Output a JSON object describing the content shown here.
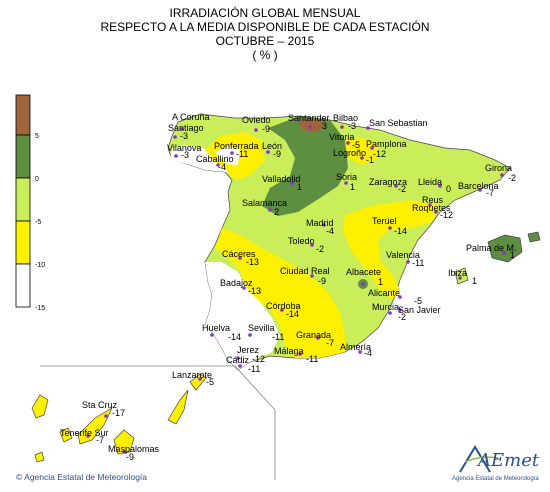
{
  "title": {
    "line1": "IRRADIACIÓN GLOBAL MENSUAL",
    "line2": "RESPECTO A LA MEDIA DISPONIBLE DE CADA ESTACIÓN",
    "line3": "OCTUBRE – 2015",
    "line4": "( % )"
  },
  "legend": {
    "ticks": [
      "5",
      "0",
      "-5",
      "-10",
      "-15"
    ],
    "colors": [
      "#a0643c",
      "#5e8e40",
      "#c9ee5a",
      "#fff000",
      "#ffffff"
    ]
  },
  "stations": [
    {
      "name": "A Coruña",
      "value": ""
    },
    {
      "name": "Santiago",
      "value": "-3"
    },
    {
      "name": "Oviedo",
      "value": "-9"
    },
    {
      "name": "Santander",
      "value": "3"
    },
    {
      "name": "Bilbao",
      "value": "-3"
    },
    {
      "name": "San Sebastian",
      "value": ""
    },
    {
      "name": "Vilanova",
      "value": "-3"
    },
    {
      "name": "Ponferrada",
      "value": "-11"
    },
    {
      "name": "León",
      "value": "-9"
    },
    {
      "name": "Vitoria",
      "value": "-5"
    },
    {
      "name": "Pamplona",
      "value": "-12"
    },
    {
      "name": "Logroño",
      "value": "-1"
    },
    {
      "name": "Girona",
      "value": "-2"
    },
    {
      "name": "Caballino",
      "value": "-4"
    },
    {
      "name": "Valladolid",
      "value": "1"
    },
    {
      "name": "Soria",
      "value": "1"
    },
    {
      "name": "Zaragoza",
      "value": "-2"
    },
    {
      "name": "Lleida",
      "value": "0"
    },
    {
      "name": "Barcelona",
      "value": "-7"
    },
    {
      "name": "Salamanca",
      "value": "2"
    },
    {
      "name": "Reus",
      "value": ""
    },
    {
      "name": "Roquetes",
      "value": "-12"
    },
    {
      "name": "Madrid",
      "value": "-4"
    },
    {
      "name": "Teruel",
      "value": "-14"
    },
    {
      "name": "Toledo",
      "value": "-2"
    },
    {
      "name": "Palma de M.",
      "value": "1"
    },
    {
      "name": "Cáceres",
      "value": "-13"
    },
    {
      "name": "Valencia",
      "value": "-11"
    },
    {
      "name": "Ciudad Real",
      "value": "-9"
    },
    {
      "name": "Albacete",
      "value": "1"
    },
    {
      "name": "Ibiza",
      "value": "1"
    },
    {
      "name": "Badajoz",
      "value": "-13"
    },
    {
      "name": "Alicante",
      "value": "-5"
    },
    {
      "name": "Córdoba",
      "value": "-14"
    },
    {
      "name": "Murcia",
      "value": "-2"
    },
    {
      "name": "San Javier",
      "value": ""
    },
    {
      "name": "Huelva",
      "value": "-14"
    },
    {
      "name": "Sevilla",
      "value": "-11"
    },
    {
      "name": "Granada",
      "value": "-7"
    },
    {
      "name": "Almería",
      "value": "-4"
    },
    {
      "name": "Jerez",
      "value": "-12"
    },
    {
      "name": "Málaga",
      "value": "-11"
    },
    {
      "name": "Cádiz",
      "value": "-11"
    },
    {
      "name": "Lanzarote",
      "value": "-5"
    },
    {
      "name": "Sta Cruz",
      "value": "-17"
    },
    {
      "name": "Tenerife Sur",
      "value": "-7"
    },
    {
      "name": "Maspalomas",
      "value": "-9"
    }
  ],
  "footer": {
    "copyright": "© Agencia Estatal de Meteorología",
    "logo_text": "AEmet",
    "logo_sub": "Agencia Estatal de Meteorología"
  }
}
